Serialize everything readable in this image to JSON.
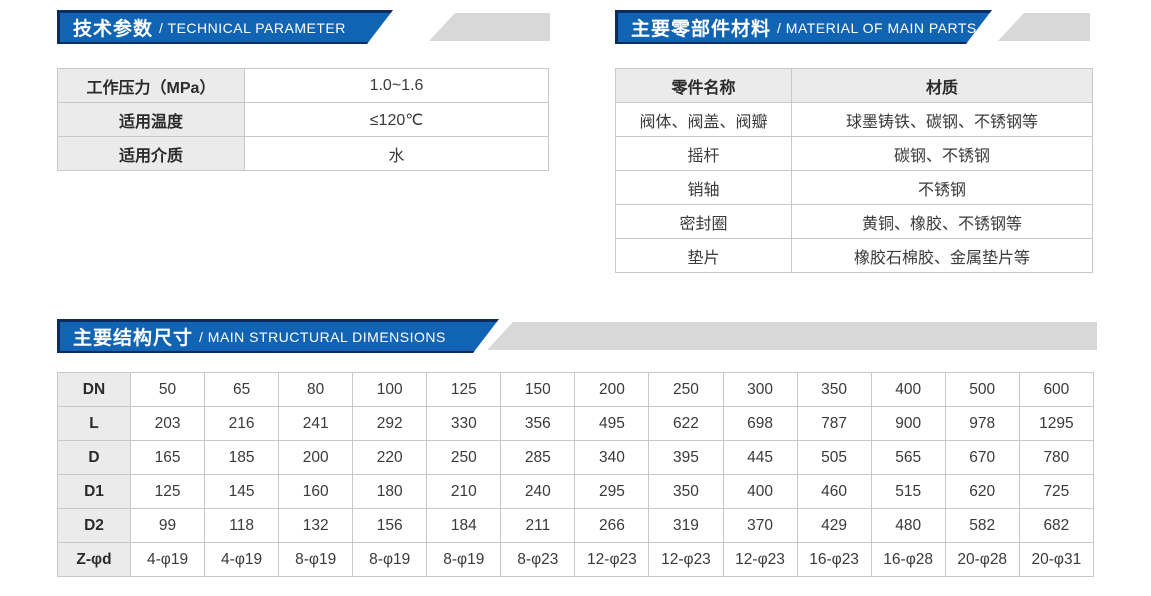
{
  "colors": {
    "banner_blue": "#1164b4",
    "banner_dark_navy": "#0a2c61",
    "banner_gray": "#d8d8d8",
    "header_cell_gray": "#ebebeb",
    "table_border": "#c8c8c8"
  },
  "sections": {
    "technical": {
      "title_zh": "技术参数",
      "title_en": "/ TECHNICAL PARAMETER",
      "rows": [
        {
          "label": "工作压力（MPa）",
          "value": "1.0~1.6"
        },
        {
          "label": "适用温度",
          "value": "≤120℃"
        },
        {
          "label": "适用介质",
          "value": "水"
        }
      ]
    },
    "materials": {
      "title_zh": "主要零部件材料",
      "title_en": "/ MATERIAL OF MAIN PARTS",
      "headers": [
        "零件名称",
        "材质"
      ],
      "rows": [
        [
          "阀体、阀盖、阀瓣",
          "球墨铸铁、碳钢、不锈钢等"
        ],
        [
          "摇杆",
          "碳钢、不锈钢"
        ],
        [
          "销轴",
          "不锈钢"
        ],
        [
          "密封圈",
          "黄铜、橡胶、不锈钢等"
        ],
        [
          "垫片",
          "橡胶石棉胶、金属垫片等"
        ]
      ]
    },
    "dimensions": {
      "title_zh": "主要结构尺寸",
      "title_en": "/ MAIN STRUCTURAL DIMENSIONS",
      "row_labels": [
        "DN",
        "L",
        "D",
        "D1",
        "D2",
        "Z-φd"
      ],
      "rows": [
        [
          "50",
          "65",
          "80",
          "100",
          "125",
          "150",
          "200",
          "250",
          "300",
          "350",
          "400",
          "500",
          "600"
        ],
        [
          "203",
          "216",
          "241",
          "292",
          "330",
          "356",
          "495",
          "622",
          "698",
          "787",
          "900",
          "978",
          "1295"
        ],
        [
          "165",
          "185",
          "200",
          "220",
          "250",
          "285",
          "340",
          "395",
          "445",
          "505",
          "565",
          "670",
          "780"
        ],
        [
          "125",
          "145",
          "160",
          "180",
          "210",
          "240",
          "295",
          "350",
          "400",
          "460",
          "515",
          "620",
          "725"
        ],
        [
          "99",
          "118",
          "132",
          "156",
          "184",
          "211",
          "266",
          "319",
          "370",
          "429",
          "480",
          "582",
          "682"
        ],
        [
          "4-φ19",
          "4-φ19",
          "8-φ19",
          "8-φ19",
          "8-φ19",
          "8-φ23",
          "12-φ23",
          "12-φ23",
          "12-φ23",
          "16-φ23",
          "16-φ28",
          "20-φ28",
          "20-φ31"
        ]
      ]
    }
  }
}
